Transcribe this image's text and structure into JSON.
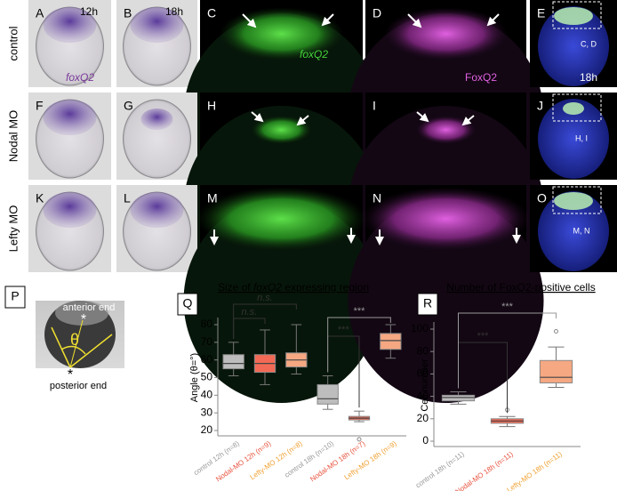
{
  "row_labels": [
    "control",
    "Nodal MO",
    "Lefty MO"
  ],
  "panels": [
    {
      "letter": "A",
      "texts": [
        "12h",
        "foxQ2"
      ]
    },
    {
      "letter": "B",
      "texts": [
        "18h"
      ]
    },
    {
      "letter": "C",
      "texts": [
        "foxQ2"
      ]
    },
    {
      "letter": "D",
      "texts": [
        "FoxQ2"
      ]
    },
    {
      "letter": "E",
      "texts": [
        "C, D",
        "18h"
      ]
    },
    {
      "letter": "F"
    },
    {
      "letter": "G"
    },
    {
      "letter": "H"
    },
    {
      "letter": "I"
    },
    {
      "letter": "J",
      "texts": [
        "H, I"
      ]
    },
    {
      "letter": "K"
    },
    {
      "letter": "L"
    },
    {
      "letter": "M"
    },
    {
      "letter": "N"
    },
    {
      "letter": "O",
      "texts": [
        "M, N"
      ]
    }
  ],
  "panel_p": {
    "letter": "P",
    "texts": [
      "anterior end",
      "*",
      "θ",
      "*",
      "posterior end"
    ]
  },
  "chart_data": [
    {
      "type": "box",
      "letter": "Q",
      "title": [
        "Size of ",
        "foxQ2",
        " expressing region"
      ],
      "y_label": "Angle (θ=°)",
      "categories": [
        "control 12h (n=8)",
        "Nodal-MO 12h (n=9)",
        "Lefty-MO 12h (n=8)",
        "control 18h (n=10)",
        "Nodal-MO 18h (n=7)",
        "Lefty-MO 18h (n=9)"
      ],
      "colors": [
        "#bdbdbd",
        "#f26a55",
        "#f5a882",
        "#bdbdbd",
        "#f26a55",
        "#f5a882"
      ],
      "label_colors": [
        "#9a9a9a",
        "#e8533f",
        "#f0a030",
        "#9a9a9a",
        "#e8533f",
        "#f0a030"
      ],
      "boxes": [
        {
          "min": 51,
          "q1": 55,
          "median": 58,
          "q3": 63,
          "max": 70
        },
        {
          "min": 46,
          "q1": 53,
          "median": 58,
          "q3": 63,
          "max": 77
        },
        {
          "min": 52,
          "q1": 56,
          "median": 60,
          "q3": 64,
          "max": 80
        },
        {
          "min": 32,
          "q1": 35,
          "median": 38,
          "q3": 46,
          "max": 51
        },
        {
          "min": 25,
          "q1": 26,
          "median": 27,
          "q3": 28,
          "max": 31,
          "outliers": [
            15
          ]
        },
        {
          "min": 61,
          "q1": 66,
          "median": 71,
          "q3": 75,
          "max": 80
        }
      ],
      "ylim": [
        20,
        80
      ],
      "yticks": [
        20,
        30,
        40,
        50,
        60,
        70,
        80
      ],
      "annotations": [
        "n.s.",
        "n.s.",
        "***",
        "***"
      ]
    },
    {
      "type": "box",
      "letter": "R",
      "title": [
        "Number of FoxQ2-positive cells"
      ],
      "y_label": "Cell number",
      "categories": [
        "control 18h (n=11)",
        "Nodal-MO 18h (n=11)",
        "Lefty-MO 18h (n=11)"
      ],
      "colors": [
        "#bdbdbd",
        "#f26a55",
        "#f5a882"
      ],
      "label_colors": [
        "#9a9a9a",
        "#e8533f",
        "#f0a030"
      ],
      "boxes": [
        {
          "min": 33,
          "q1": 36,
          "median": 39,
          "q3": 41,
          "max": 44
        },
        {
          "min": 13,
          "q1": 16,
          "median": 18,
          "q3": 20,
          "max": 22,
          "outliers": [
            28
          ]
        },
        {
          "min": 48,
          "q1": 52,
          "median": 57,
          "q3": 72,
          "max": 84,
          "outliers": [
            98
          ]
        }
      ],
      "ylim": [
        0,
        100
      ],
      "yticks": [
        0,
        20,
        40,
        60,
        80,
        100
      ],
      "annotations": [
        "***",
        "***"
      ]
    }
  ]
}
